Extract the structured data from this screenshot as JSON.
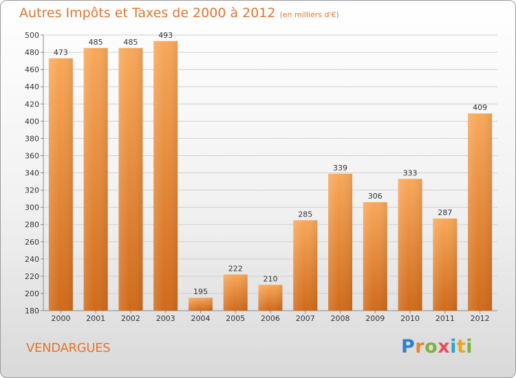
{
  "title": "Autres Impôts et Taxes de 2000 à 2012",
  "subtitle": "(en milliers d'€)",
  "commune": "VENDARGUES",
  "logo": {
    "letters": [
      "P",
      "r",
      "o",
      "x",
      "i",
      "t",
      "i"
    ],
    "colors": [
      "#2f7fd0",
      "#e8852a",
      "#7cb342",
      "#e84d5b",
      "#29a3d9",
      "#f0a21c",
      "#7cb342"
    ]
  },
  "colors": {
    "bar": "#f0913c",
    "text": "#e0762d",
    "grid": "#cfcfcf"
  },
  "chart_data": {
    "type": "bar",
    "categories": [
      "2000",
      "2001",
      "2002",
      "2003",
      "2004",
      "2005",
      "2006",
      "2007",
      "2008",
      "2009",
      "2010",
      "2011",
      "2012"
    ],
    "values": [
      473,
      485,
      485,
      493,
      195,
      222,
      210,
      285,
      339,
      306,
      333,
      287,
      409
    ],
    "title": "Autres Impôts et Taxes de 2000 à 2012",
    "xlabel": "",
    "ylabel": "",
    "ylim": [
      180,
      500
    ],
    "yticks": [
      180,
      200,
      220,
      240,
      260,
      280,
      300,
      320,
      340,
      360,
      380,
      400,
      420,
      440,
      460,
      480,
      500
    ],
    "grid": true,
    "data_labels": true
  }
}
